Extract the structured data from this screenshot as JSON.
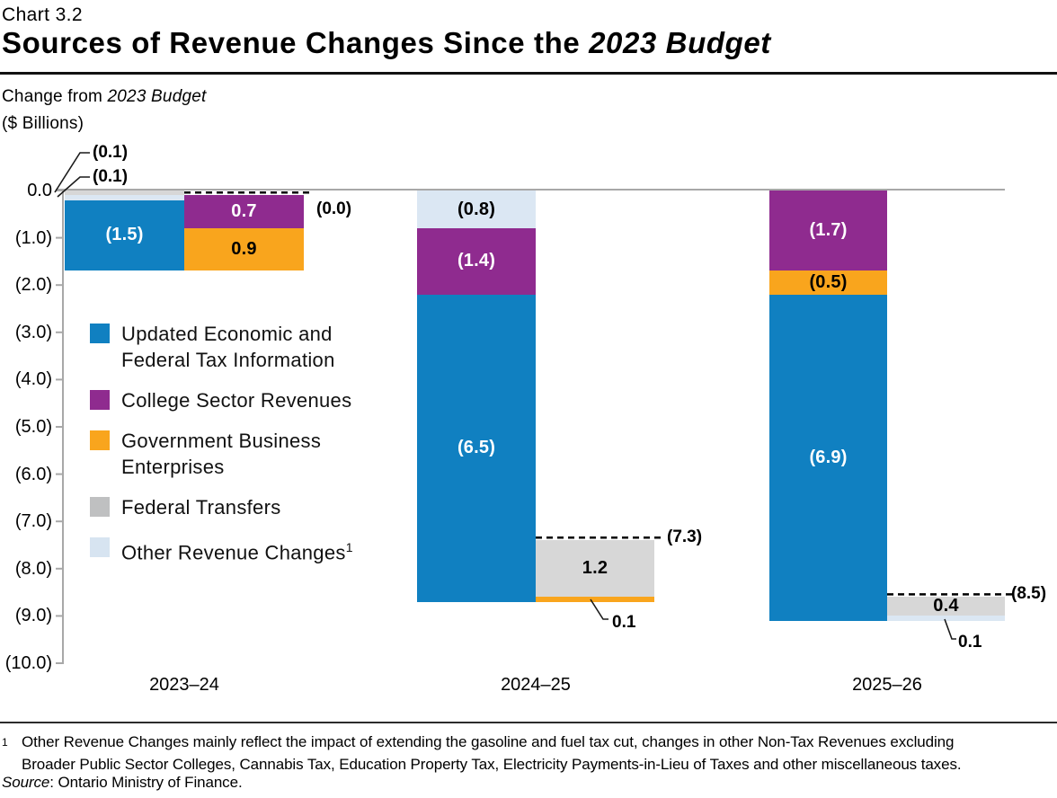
{
  "header": {
    "chart_number": "Chart 3.2",
    "title_prefix": "Sources of Revenue Changes Since the ",
    "title_italic": "2023 Budget",
    "subtitle_prefix": "Change from ",
    "subtitle_italic": "2023 Budget",
    "units_label": "($ Billions)"
  },
  "chart_data": {
    "type": "bar",
    "subtype": "stacked-waterfall",
    "title": "Sources of Revenue Changes Since the 2023 Budget",
    "units": "$ Billions",
    "ylim": [
      -10,
      0
    ],
    "grid": false,
    "legend_position": "inside-upper-left",
    "y_ticks": [
      "0.0",
      "(1.0)",
      "(2.0)",
      "(3.0)",
      "(4.0)",
      "(5.0)",
      "(6.0)",
      "(7.0)",
      "(8.0)",
      "(9.0)",
      "(10.0)"
    ],
    "y_tick_values": [
      0,
      -1,
      -2,
      -3,
      -4,
      -5,
      -6,
      -7,
      -8,
      -9,
      -10
    ],
    "series": [
      {
        "id": "updated",
        "name": "Updated Economic and Federal Tax Information",
        "color": "#1080c1",
        "legend_color": "#1080c1"
      },
      {
        "id": "college",
        "name": "College Sector Revenues",
        "color": "#8f2b8f",
        "legend_color": "#8f2b8f"
      },
      {
        "id": "gbe",
        "name": "Government Business Enterprises",
        "color": "#f9a51d",
        "legend_color": "#f9a51d"
      },
      {
        "id": "federal",
        "name": "Federal Transfers",
        "color": "#d7d7d7",
        "legend_color": "#bfc0c1"
      },
      {
        "id": "other",
        "name": "Other Revenue Changes",
        "footnote_marker": "1",
        "color": "#dbe7f3",
        "legend_color": "#d7e4f1"
      }
    ],
    "groups": [
      {
        "label": "2023–24",
        "down_stack": [
          {
            "series": "federal",
            "value": -0.1,
            "display": "(0.1)",
            "label_style": "callout"
          },
          {
            "series": "other",
            "value": -0.1,
            "display": "(0.1)",
            "label_style": "callout"
          },
          {
            "series": "updated",
            "value": -1.5,
            "display": "(1.5)",
            "label_style": "inside-white"
          }
        ],
        "up_stack": [
          {
            "series": "college",
            "value": 0.7,
            "display": "0.7",
            "label_style": "inside-white"
          },
          {
            "series": "gbe",
            "value": 0.9,
            "display": "0.9",
            "label_style": "inside-black"
          }
        ],
        "net": {
          "display": "(0.0)",
          "value": 0.0
        }
      },
      {
        "label": "2024–25",
        "down_stack": [
          {
            "series": "other",
            "value": -0.8,
            "display": "(0.8)",
            "label_style": "inside-black"
          },
          {
            "series": "college",
            "value": -1.4,
            "display": "(1.4)",
            "label_style": "inside-white"
          },
          {
            "series": "updated",
            "value": -6.5,
            "display": "(6.5)",
            "label_style": "inside-white"
          }
        ],
        "up_stack": [
          {
            "series": "federal",
            "value": 1.2,
            "display": "1.2",
            "label_style": "inside-black"
          },
          {
            "series": "gbe",
            "value": 0.1,
            "display": "0.1",
            "label_style": "callout"
          }
        ],
        "net": {
          "display": "(7.3)",
          "value": -7.3
        }
      },
      {
        "label": "2025–26",
        "down_stack": [
          {
            "series": "college",
            "value": -1.7,
            "display": "(1.7)",
            "label_style": "inside-white"
          },
          {
            "series": "gbe",
            "value": -0.5,
            "display": "(0.5)",
            "label_style": "inside-black"
          },
          {
            "series": "updated",
            "value": -6.9,
            "display": "(6.9)",
            "label_style": "inside-white"
          }
        ],
        "up_stack": [
          {
            "series": "federal",
            "value": 0.4,
            "display": "0.4",
            "label_style": "inside-black"
          },
          {
            "series": "other",
            "value": 0.1,
            "display": "0.1",
            "label_style": "callout"
          }
        ],
        "net": {
          "display": "(8.5)",
          "value": -8.5
        }
      }
    ],
    "colors": {
      "axis_gray": "#a8a8a8",
      "dashed_line": "#000000",
      "text": "#000000"
    }
  },
  "footnote": {
    "marker": "1",
    "text": "Other Revenue Changes mainly reflect the impact of extending the gasoline and fuel tax cut, changes in other Non-Tax Revenues excluding Broader Public Sector Colleges, Cannabis Tax, Education Property Tax, Electricity Payments-in-Lieu of Taxes and other miscellaneous taxes.",
    "source_label": "Source",
    "source_rest": ": Ontario Ministry of Finance."
  }
}
